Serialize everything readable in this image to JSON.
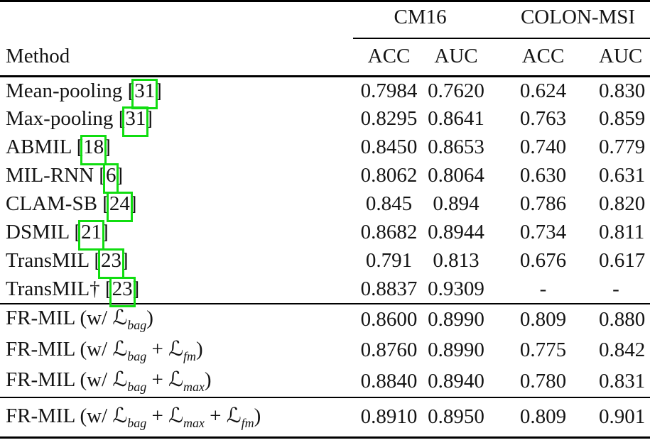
{
  "table": {
    "method_header": "Method",
    "col_groups": [
      {
        "label": "CM16"
      },
      {
        "label": "COLON-MSI"
      }
    ],
    "sub_headers": [
      "ACC",
      "AUC",
      "ACC",
      "AUC"
    ],
    "cite_brackets": [
      "[",
      "]"
    ],
    "loss_symbol": "ℒ",
    "colors": {
      "citation_box": "#10dd10",
      "text": "#141414",
      "rules": "#000000"
    },
    "groups": [
      {
        "name": "baseline-methods",
        "rows": [
          {
            "method": [
              {
                "text": "Mean-pooling "
              },
              {
                "cite": "31"
              }
            ],
            "values": [
              "0.7984",
              "0.7620",
              "0.624",
              "0.830"
            ]
          },
          {
            "method": [
              {
                "text": "Max-pooling "
              },
              {
                "cite": "31"
              }
            ],
            "values": [
              "0.8295",
              "0.8641",
              "0.763",
              "0.859"
            ]
          },
          {
            "method": [
              {
                "text": "ABMIL "
              },
              {
                "cite": "18"
              }
            ],
            "values": [
              "0.8450",
              "0.8653",
              "0.740",
              "0.779"
            ]
          },
          {
            "method": [
              {
                "text": "MIL-RNN "
              },
              {
                "cite": "6"
              }
            ],
            "values": [
              "0.8062",
              "0.8064",
              "0.630",
              "0.631"
            ]
          },
          {
            "method": [
              {
                "text": "CLAM-SB "
              },
              {
                "cite": "24"
              }
            ],
            "values": [
              "0.845",
              "0.894",
              "0.786",
              "0.820"
            ]
          },
          {
            "method": [
              {
                "text": "DSMIL "
              },
              {
                "cite": "21"
              }
            ],
            "values": [
              "0.8682",
              "0.8944",
              "0.734",
              "0.811"
            ]
          },
          {
            "method": [
              {
                "text": "TransMIL "
              },
              {
                "cite": "23"
              }
            ],
            "values": [
              "0.791",
              "0.813",
              "0.676",
              "0.617"
            ]
          },
          {
            "method": [
              {
                "text": "TransMIL† "
              },
              {
                "cite": "23"
              }
            ],
            "values": [
              "0.8837",
              "0.9309",
              "-",
              "-"
            ]
          }
        ]
      },
      {
        "name": "frmil-ablations",
        "rows": [
          {
            "method": [
              {
                "text": "FR-MIL (w/ "
              },
              {
                "loss": "bag"
              },
              {
                "text": ")"
              }
            ],
            "values": [
              "0.8600",
              "0.8990",
              "0.809",
              "0.880"
            ]
          },
          {
            "method": [
              {
                "text": "FR-MIL (w/ "
              },
              {
                "loss": "bag"
              },
              {
                "text": " + "
              },
              {
                "loss": "fm"
              },
              {
                "text": ")"
              }
            ],
            "values": [
              "0.8760",
              "0.8990",
              "0.775",
              "0.842"
            ]
          },
          {
            "method": [
              {
                "text": "FR-MIL (w/ "
              },
              {
                "loss": "bag"
              },
              {
                "text": " + "
              },
              {
                "loss": "max"
              },
              {
                "text": ")"
              }
            ],
            "values": [
              "0.8840",
              "0.8940",
              "0.780",
              "0.831"
            ]
          }
        ]
      },
      {
        "name": "frmil-full",
        "rows": [
          {
            "method": [
              {
                "text": "FR-MIL (w/ "
              },
              {
                "loss": "bag"
              },
              {
                "text": " + "
              },
              {
                "loss": "max"
              },
              {
                "text": " + "
              },
              {
                "loss": "fm"
              },
              {
                "text": ")"
              }
            ],
            "values": [
              "0.8910",
              "0.8950",
              "0.809",
              "0.901"
            ]
          }
        ]
      }
    ]
  }
}
